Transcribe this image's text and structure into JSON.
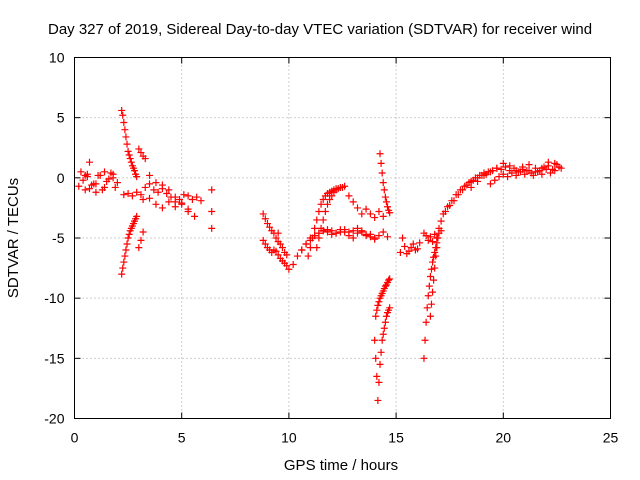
{
  "chart_data": {
    "type": "scatter",
    "title": "Day 327 of 2019, Sidereal Day-to-day VTEC variation (SDTVAR) for receiver wind",
    "xlabel": "GPS time / hours",
    "ylabel": "SDTVAR / TECUs",
    "xlim": [
      0,
      25
    ],
    "ylim": [
      -20,
      10
    ],
    "xticks": [
      0,
      5,
      10,
      15,
      20,
      25
    ],
    "xtick_labels": [
      "0",
      "5",
      "10",
      "15",
      "20",
      "25"
    ],
    "yticks": [
      -20,
      -15,
      -10,
      -5,
      0,
      5,
      10
    ],
    "ytick_labels": [
      "-20",
      "-15",
      "-10",
      "-5",
      "0",
      "5",
      "10"
    ],
    "grid": true,
    "marker": "+",
    "color": "#ff0000",
    "series": [
      {
        "name": "SDTVAR",
        "x": [
          0.3,
          0.4,
          0.5,
          0.6,
          0.7,
          0.9,
          1.1,
          1.3,
          1.5,
          1.7,
          1.9,
          0.6,
          0.8,
          1.0,
          1.2,
          1.4,
          1.6,
          1.8,
          2.0,
          0.2,
          0.5,
          0.7,
          1.0,
          1.4,
          1.8,
          2.2,
          2.25,
          2.3,
          2.35,
          2.4,
          2.45,
          2.5,
          2.55,
          2.6,
          2.65,
          2.7,
          2.75,
          2.8,
          2.85,
          2.9,
          2.2,
          2.25,
          2.3,
          2.35,
          2.4,
          2.45,
          2.5,
          2.55,
          2.6,
          2.65,
          2.7,
          2.75,
          2.8,
          2.85,
          2.9,
          3.0,
          3.1,
          3.2,
          3.0,
          3.1,
          3.2,
          3.3,
          2.3,
          2.5,
          2.7,
          2.9,
          3.1,
          3.3,
          3.5,
          3.7,
          3.9,
          4.1,
          4.3,
          4.5,
          4.7,
          4.9,
          5.1,
          5.3,
          5.5,
          5.7,
          5.9,
          3.5,
          3.8,
          4.1,
          4.4,
          4.7,
          5.0,
          5.3,
          5.6,
          3.2,
          3.5,
          3.8,
          4.1,
          4.4,
          4.7,
          5.0,
          5.3,
          6.4,
          6.4,
          6.4,
          8.8,
          8.9,
          9.0,
          9.1,
          9.2,
          9.3,
          8.8,
          8.9,
          9.0,
          9.1,
          9.2,
          9.3,
          9.4,
          9.5,
          9.6,
          9.7,
          9.8,
          9.9,
          9.4,
          9.5,
          9.6,
          9.7,
          9.8,
          9.9,
          9.5,
          10.0,
          10.2,
          10.4,
          10.6,
          10.8,
          11.0,
          11.2,
          11.4,
          11.6,
          11.8,
          12.0,
          12.2,
          12.4,
          12.6,
          12.8,
          13.0,
          13.2,
          13.4,
          13.6,
          13.8,
          14.0,
          14.2,
          14.4,
          14.6,
          10.6,
          10.8,
          11.0,
          11.2,
          11.4,
          11.6,
          11.8,
          12.0,
          12.2,
          12.4,
          12.6,
          12.8,
          13.0,
          13.2,
          13.4,
          13.6,
          13.8,
          14.0,
          10.9,
          11.0,
          11.1,
          11.2,
          11.3,
          11.4,
          11.5,
          11.6,
          11.7,
          11.8,
          11.9,
          12.0,
          12.1,
          12.2,
          11.3,
          11.4,
          11.5,
          11.6,
          11.7,
          11.8,
          11.9,
          12.0,
          12.1,
          12.2,
          12.3,
          12.4,
          12.5,
          12.6,
          12.8,
          13.0,
          13.2,
          13.4,
          13.6,
          13.8,
          14.0,
          14.2,
          14.4,
          14.05,
          14.1,
          14.15,
          14.2,
          14.25,
          14.3,
          14.35,
          14.4,
          14.45,
          14.5,
          14.55,
          14.6,
          14.65,
          14.7,
          14.0,
          14.05,
          14.1,
          14.15,
          14.2,
          14.25,
          14.3,
          14.35,
          14.4,
          14.45,
          14.5,
          14.55,
          14.6,
          14.65,
          14.7,
          14.25,
          14.3,
          14.35,
          14.4,
          14.45,
          14.5,
          14.55,
          14.6,
          14.65,
          14.7,
          15.2,
          15.4,
          15.6,
          15.8,
          16.0,
          15.3,
          15.5,
          15.7,
          15.9,
          16.1,
          16.3,
          16.4,
          16.5,
          16.6,
          16.7,
          16.8,
          16.9,
          17.0,
          17.1,
          16.3,
          16.35,
          16.4,
          16.45,
          16.5,
          16.55,
          16.6,
          16.65,
          16.7,
          16.75,
          16.8,
          16.85,
          16.9,
          16.6,
          16.65,
          16.7,
          16.75,
          16.8,
          16.85,
          16.9,
          16.95,
          17.0,
          17.1,
          17.2,
          17.4,
          17.6,
          17.8,
          18.0,
          18.2,
          18.4,
          18.6,
          18.8,
          19.0,
          19.2,
          17.3,
          17.5,
          17.7,
          17.9,
          18.1,
          18.3,
          18.5,
          18.7,
          18.9,
          19.1,
          19.3,
          19.5,
          19.7,
          19.9,
          20.1,
          20.3,
          20.5,
          20.7,
          20.9,
          21.1,
          21.3,
          21.5,
          21.7,
          21.9,
          22.1,
          22.3,
          22.5,
          22.7,
          19.4,
          19.6,
          19.8,
          20.0,
          20.2,
          20.4,
          20.6,
          20.8,
          21.0,
          21.2,
          21.4,
          21.6,
          21.8,
          22.0,
          22.2,
          22.4,
          22.6,
          18.5,
          18.8,
          19.1,
          19.4,
          19.7,
          20.0,
          20.3,
          20.6,
          20.9,
          21.2,
          21.5,
          21.8,
          22.1,
          22.4
        ],
        "y": [
          0.5,
          -0.2,
          -1.0,
          0.3,
          1.3,
          -0.5,
          0.2,
          -1.0,
          -0.3,
          0.4,
          -0.8,
          0.1,
          -0.6,
          -1.2,
          0.2,
          0.5,
          -0.1,
          0.3,
          -0.4,
          -0.7,
          0.2,
          -0.9,
          -0.5,
          -0.8,
          0.0,
          5.6,
          5.2,
          4.6,
          4.0,
          3.4,
          2.8,
          2.2,
          1.9,
          1.6,
          1.3,
          1.0,
          0.8,
          0.6,
          0.3,
          0.1,
          -8.0,
          -7.5,
          -7.0,
          -6.5,
          -6.0,
          -5.5,
          -5.0,
          -4.7,
          -4.4,
          -4.2,
          -4.0,
          -3.8,
          -3.6,
          -3.4,
          -3.2,
          -5.8,
          -5.2,
          -4.5,
          2.4,
          2.1,
          1.8,
          1.6,
          -1.4,
          -1.3,
          -1.5,
          -1.2,
          -1.4,
          -0.8,
          -0.5,
          -1.0,
          -1.2,
          -0.9,
          -1.3,
          -1.6,
          -2.0,
          -1.8,
          -1.4,
          -1.5,
          -1.8,
          -1.6,
          -1.9,
          0.2,
          -0.4,
          -0.6,
          -1.0,
          -1.6,
          -2.2,
          -2.6,
          -3.2,
          -1.8,
          -1.7,
          -2.2,
          -2.5,
          -2.0,
          -2.4,
          -2.1,
          -2.8,
          -1.0,
          -2.8,
          -4.2,
          -3.0,
          -3.4,
          -3.8,
          -4.1,
          -4.4,
          -4.6,
          -5.2,
          -5.5,
          -5.8,
          -6.0,
          -6.2,
          -6.0,
          -6.1,
          -6.4,
          -6.7,
          -6.9,
          -7.1,
          -7.3,
          -5.0,
          -5.3,
          -5.5,
          -5.8,
          -6.2,
          -6.4,
          -4.6,
          -7.6,
          -7.2,
          -6.5,
          -6.0,
          -5.5,
          -5.0,
          -4.8,
          -4.6,
          -4.4,
          -4.5,
          -4.7,
          -4.6,
          -4.3,
          -4.5,
          -4.8,
          -5.0,
          -4.6,
          -4.4,
          -4.7,
          -4.9,
          -5.1,
          -4.8,
          -4.5,
          -4.9,
          -6.0,
          -5.5,
          -5.2,
          -4.8,
          -4.6,
          -4.4,
          -4.3,
          -4.4,
          -4.6,
          -4.5,
          -4.3,
          -4.5,
          -4.4,
          -4.2,
          -4.5,
          -4.8,
          -4.7,
          -5.0,
          -6.5,
          -5.8,
          -5.0,
          -4.2,
          -3.5,
          -2.8,
          -2.2,
          -1.8,
          -1.5,
          -1.3,
          -1.2,
          -1.1,
          -1.0,
          -0.9,
          -5.8,
          -5.0,
          -4.2,
          -3.5,
          -2.8,
          -2.2,
          -1.8,
          -1.5,
          -1.2,
          -1.0,
          -0.9,
          -0.8,
          -0.8,
          -0.7,
          -1.5,
          -2.0,
          -2.5,
          -3.0,
          -2.6,
          -3.0,
          -3.3,
          -2.8,
          -3.2,
          -11.5,
          -11.0,
          -10.6,
          -10.3,
          -10.0,
          -9.8,
          -9.6,
          -9.4,
          -9.2,
          -9.0,
          -8.9,
          -8.7,
          -8.5,
          -8.4,
          -13.5,
          -15.0,
          -16.5,
          -18.5,
          -17.0,
          -15.5,
          -14.5,
          -13.5,
          -13.0,
          -12.5,
          -12.0,
          -11.5,
          -11.2,
          -11.0,
          -10.8,
          2.0,
          1.2,
          0.4,
          -0.4,
          -1.0,
          -1.6,
          -2.0,
          -2.4,
          -2.7,
          -2.9,
          -6.2,
          -5.7,
          -6.1,
          -5.5,
          -5.9,
          -5.0,
          -6.3,
          -5.8,
          -6.0,
          -5.4,
          -4.6,
          -4.8,
          -5.2,
          -4.9,
          -5.3,
          -4.7,
          -5.0,
          -4.6,
          -4.4,
          -15.0,
          -13.5,
          -12.0,
          -10.8,
          -9.8,
          -9.0,
          -8.2,
          -7.6,
          -7.0,
          -6.6,
          -6.2,
          -5.8,
          -5.4,
          -11.5,
          -10.5,
          -9.5,
          -8.5,
          -7.5,
          -6.5,
          -5.8,
          -5.0,
          -4.2,
          -3.6,
          -3.0,
          -2.4,
          -1.9,
          -1.4,
          -1.0,
          -0.7,
          -0.4,
          -0.2,
          0.0,
          0.2,
          0.3,
          -2.8,
          -2.3,
          -1.9,
          -1.4,
          -1.0,
          -0.6,
          -0.3,
          0.0,
          0.2,
          0.4,
          0.5,
          0.6,
          0.8,
          0.7,
          0.9,
          0.6,
          0.8,
          0.5,
          0.7,
          0.6,
          0.4,
          0.8,
          0.6,
          0.9,
          1.0,
          0.7,
          1.1,
          0.8,
          -0.5,
          -0.2,
          0.1,
          0.3,
          0.1,
          0.4,
          0.2,
          0.5,
          0.3,
          0.6,
          0.2,
          0.5,
          0.3,
          0.7,
          0.4,
          0.6,
          0.9,
          -0.8,
          -0.3,
          0.2,
          0.5,
          0.8,
          1.2,
          1.0,
          0.6,
          0.9,
          1.1,
          0.5,
          0.8,
          1.3,
          1.2
        ]
      }
    ]
  }
}
